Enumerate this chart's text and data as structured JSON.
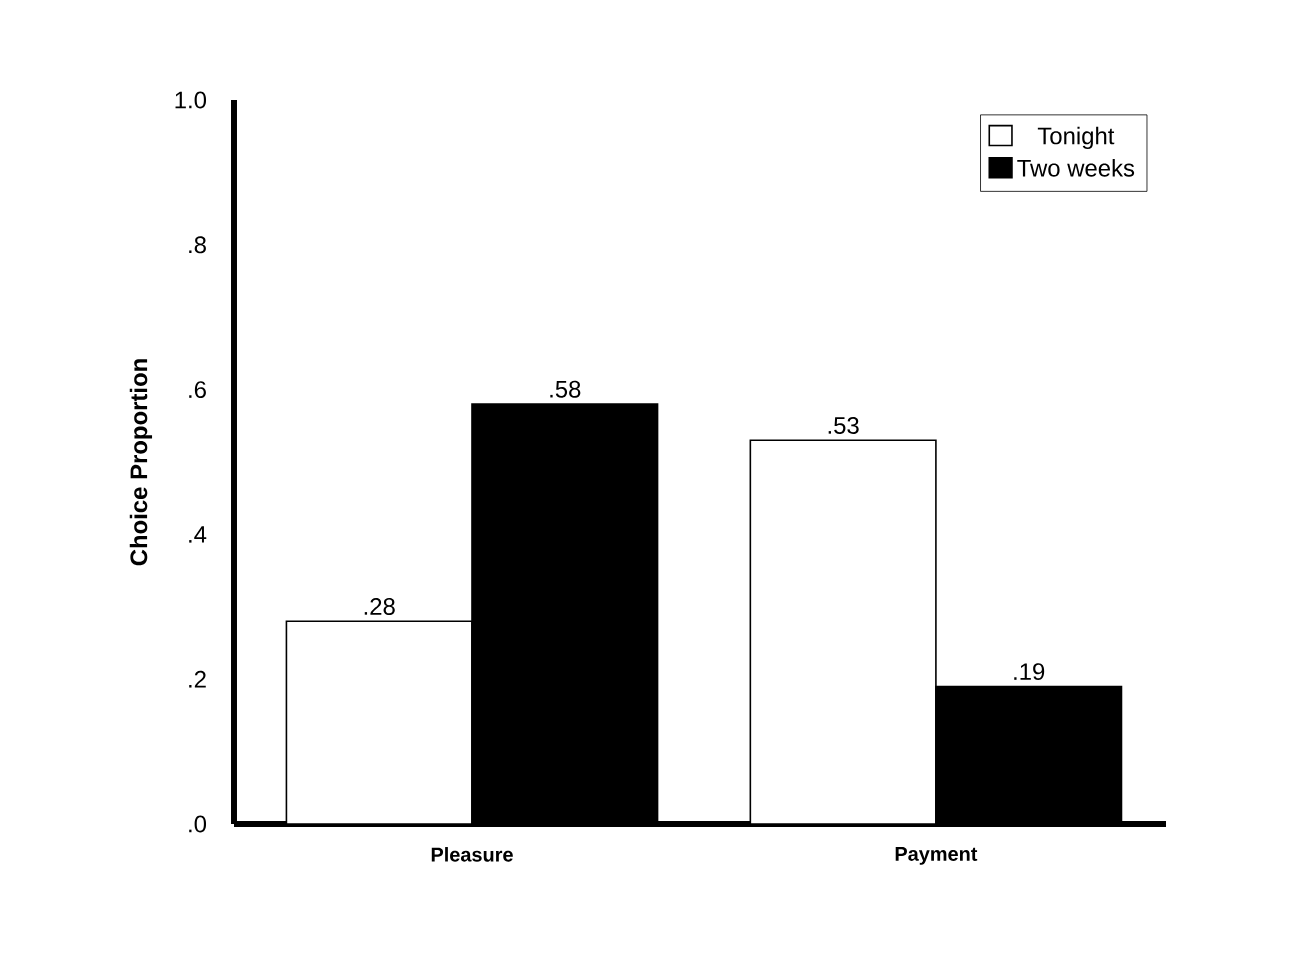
{
  "chart_data": {
    "type": "bar",
    "ylabel": "Choice Proportion",
    "categories": [
      "Pleasure",
      "Payment"
    ],
    "series": [
      {
        "name": "Tonight",
        "color": "#ffffff",
        "values": [
          0.28,
          0.53
        ],
        "value_labels": [
          ".28",
          ".53"
        ]
      },
      {
        "name": "Two weeks",
        "color": "#000000",
        "values": [
          0.58,
          0.19
        ],
        "value_labels": [
          ".58",
          ".19"
        ]
      }
    ],
    "ylim": [
      0,
      1
    ],
    "yticks": [
      {
        "value": 0,
        "label": ".0"
      },
      {
        "value": 0.2,
        "label": ".2"
      },
      {
        "value": 0.4,
        "label": ".4"
      },
      {
        "value": 0.6,
        "label": ".6"
      },
      {
        "value": 0.8,
        "label": ".8"
      },
      {
        "value": 1,
        "label": "1.0"
      }
    ],
    "legend": "top right"
  }
}
